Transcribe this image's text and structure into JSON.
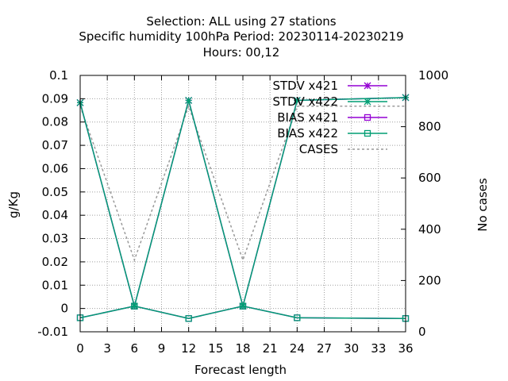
{
  "chart_data": {
    "type": "line",
    "title_lines": [
      "Selection: ALL using    27 stations",
      "Specific humidity 100hPa   Period: 20230114-20230219",
      "Hours:  00,12"
    ],
    "xlabel": "Forecast length",
    "ylabel": "g/Kg",
    "y2label": "No cases",
    "xlim": [
      0,
      36
    ],
    "ylim": [
      -0.01,
      0.1
    ],
    "y2lim": [
      0,
      1000
    ],
    "xticks": [
      0,
      3,
      6,
      9,
      12,
      15,
      18,
      21,
      24,
      27,
      30,
      33,
      36
    ],
    "yticks": [
      -0.01,
      0,
      0.01,
      0.02,
      0.03,
      0.04,
      0.05,
      0.06,
      0.07,
      0.08,
      0.09,
      0.1
    ],
    "yticklabels": [
      "-0.01",
      "0",
      "0.01",
      "0.02",
      "0.03",
      "0.04",
      "0.05",
      "0.06",
      "0.07",
      "0.08",
      "0.09",
      "0.1"
    ],
    "y2ticks": [
      0,
      200,
      400,
      600,
      800,
      1000
    ],
    "grid": true,
    "legend_position": "top-right",
    "series": [
      {
        "name": "STDV x421",
        "color": "#9400d3",
        "marker": "star",
        "dash": "",
        "axis": "y",
        "x": [
          0,
          6,
          12,
          18,
          24,
          36
        ],
        "values": [
          0.0883,
          0.001,
          0.0893,
          0.001,
          0.0893,
          0.0905
        ]
      },
      {
        "name": "STDV x422",
        "color": "#009e73",
        "marker": "star",
        "dash": "",
        "axis": "y",
        "x": [
          0,
          6,
          12,
          18,
          24,
          36
        ],
        "values": [
          0.0883,
          0.001,
          0.0893,
          0.001,
          0.0893,
          0.0905
        ]
      },
      {
        "name": "BIAS x421",
        "color": "#9400d3",
        "marker": "square",
        "dash": "",
        "axis": "y",
        "x": [
          0,
          6,
          12,
          18,
          24,
          36
        ],
        "values": [
          -0.004,
          0.001,
          -0.0043,
          0.001,
          -0.004,
          -0.0043
        ]
      },
      {
        "name": "BIAS x422",
        "color": "#009e73",
        "marker": "square",
        "dash": "",
        "axis": "y",
        "x": [
          0,
          6,
          12,
          18,
          24,
          36
        ],
        "values": [
          -0.004,
          0.001,
          -0.0043,
          0.001,
          -0.004,
          -0.0043
        ]
      },
      {
        "name": "CASES",
        "color": "#999999",
        "marker": "none",
        "dash": "3,3",
        "axis": "y2",
        "x": [
          0,
          6,
          12,
          18,
          24,
          36
        ],
        "values": [
          880,
          280,
          880,
          280,
          880,
          880
        ]
      }
    ]
  }
}
